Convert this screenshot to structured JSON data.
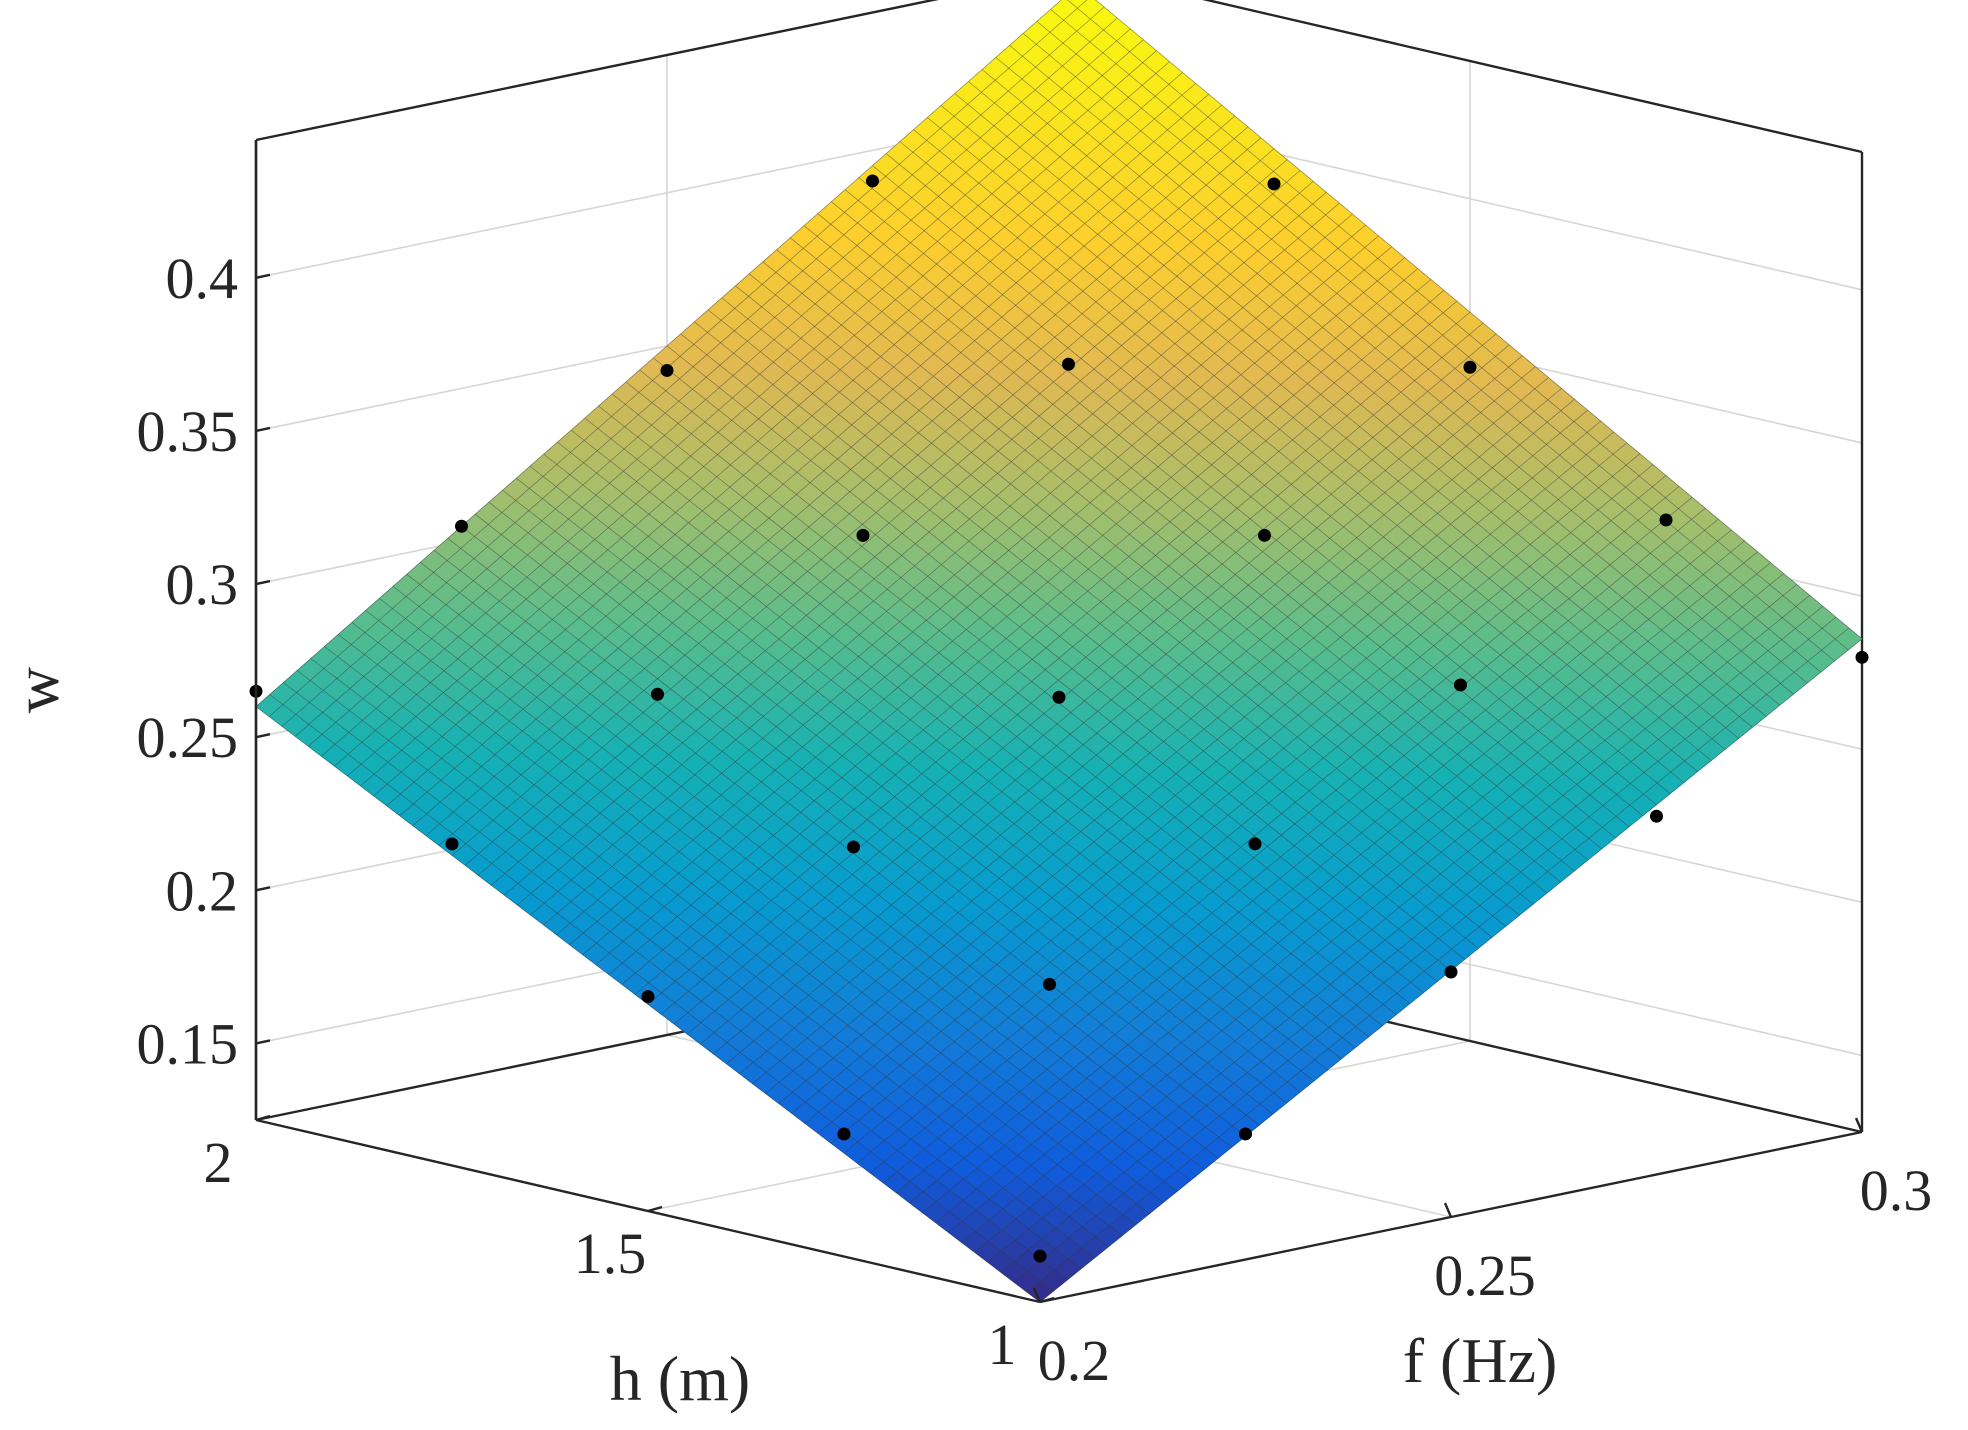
{
  "chart_data": {
    "type": "surface3d",
    "xlabel": "f (Hz)",
    "ylabel": "h (m)",
    "zlabel": "w",
    "xlim": [
      0.2,
      0.3
    ],
    "ylim": [
      1,
      2
    ],
    "zlim": [
      0.125,
      0.445
    ],
    "x_ticks": [
      {
        "value": 0.2,
        "label": "0.2"
      },
      {
        "value": 0.25,
        "label": "0.25"
      },
      {
        "value": 0.3,
        "label": "0.3"
      }
    ],
    "y_ticks": [
      {
        "value": 1,
        "label": "1"
      },
      {
        "value": 1.5,
        "label": "1.5"
      },
      {
        "value": 2,
        "label": "2"
      }
    ],
    "z_ticks": [
      {
        "value": 0.15,
        "label": "0.15"
      },
      {
        "value": 0.2,
        "label": "0.2"
      },
      {
        "value": 0.25,
        "label": "0.25"
      },
      {
        "value": 0.3,
        "label": "0.3"
      },
      {
        "value": 0.35,
        "label": "0.35"
      },
      {
        "value": 0.4,
        "label": "0.4"
      }
    ],
    "surface": {
      "colormap": "parula",
      "corner_values": [
        {
          "f": 0.2,
          "h": 1,
          "w": 0.125
        },
        {
          "f": 0.3,
          "h": 1,
          "w": 0.286
        },
        {
          "f": 0.2,
          "h": 2,
          "w": 0.26
        },
        {
          "f": 0.3,
          "h": 2,
          "w": 0.44
        }
      ],
      "grid_lines": 60
    },
    "points": [
      {
        "f": 0.2,
        "h": 1.0,
        "w": 0.14
      },
      {
        "f": 0.2,
        "h": 1.25,
        "w": 0.165
      },
      {
        "f": 0.2,
        "h": 1.5,
        "w": 0.195
      },
      {
        "f": 0.2,
        "h": 1.75,
        "w": 0.23
      },
      {
        "f": 0.2,
        "h": 2.0,
        "w": 0.265
      },
      {
        "f": 0.225,
        "h": 1.0,
        "w": 0.166
      },
      {
        "f": 0.225,
        "h": 1.25,
        "w": 0.2
      },
      {
        "f": 0.225,
        "h": 1.5,
        "w": 0.23
      },
      {
        "f": 0.225,
        "h": 1.75,
        "w": 0.265
      },
      {
        "f": 0.225,
        "h": 2.0,
        "w": 0.305
      },
      {
        "f": 0.25,
        "h": 1.0,
        "w": 0.205
      },
      {
        "f": 0.25,
        "h": 1.25,
        "w": 0.232
      },
      {
        "f": 0.25,
        "h": 1.5,
        "w": 0.265
      },
      {
        "f": 0.25,
        "h": 1.75,
        "w": 0.303
      },
      {
        "f": 0.25,
        "h": 2.0,
        "w": 0.342
      },
      {
        "f": 0.275,
        "h": 1.0,
        "w": 0.242
      },
      {
        "f": 0.275,
        "h": 1.25,
        "w": 0.27
      },
      {
        "f": 0.275,
        "h": 1.5,
        "w": 0.304
      },
      {
        "f": 0.275,
        "h": 1.75,
        "w": 0.345
      },
      {
        "f": 0.275,
        "h": 2.0,
        "w": 0.39
      },
      {
        "f": 0.3,
        "h": 1.0,
        "w": 0.28
      },
      {
        "f": 0.3,
        "h": 1.25,
        "w": 0.31
      },
      {
        "f": 0.3,
        "h": 1.5,
        "w": 0.345
      },
      {
        "f": 0.3,
        "h": 1.75,
        "w": 0.39
      },
      {
        "f": 0.3,
        "h": 2.0,
        "w": 0.44
      }
    ],
    "grid": true
  }
}
